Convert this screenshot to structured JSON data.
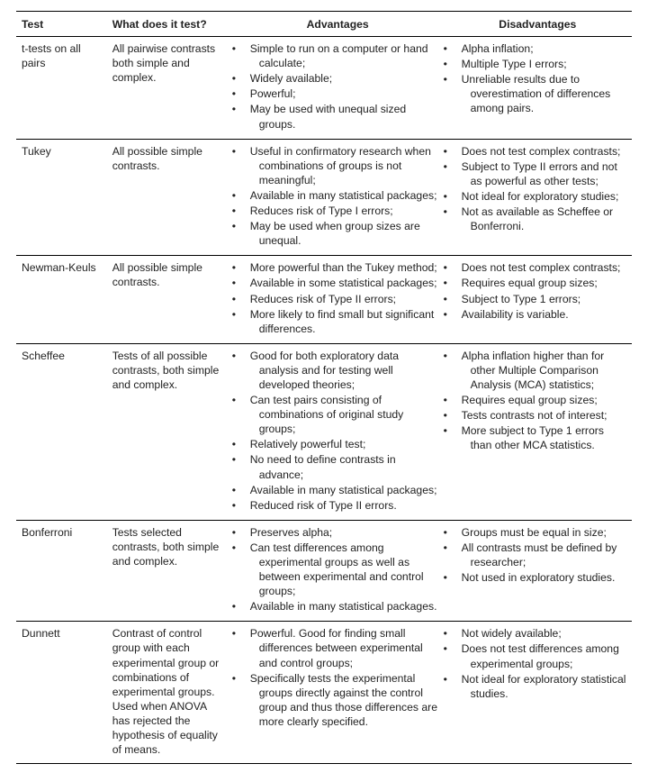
{
  "header": {
    "test": "Test",
    "what": "What does it test?",
    "advantages": "Advantages",
    "disadvantages": "Disadvantages"
  },
  "rows": [
    {
      "test": "t-tests on all pairs",
      "what": "All pairwise contrasts both simple and complex.",
      "adv": [
        "Simple to run on a computer or hand calculate;",
        "Widely available;",
        "Powerful;",
        "May be used with unequal sized groups."
      ],
      "dis": [
        "Alpha inflation;",
        "Multiple Type I errors;",
        "Unreliable results due to overestimation of differences among pairs."
      ]
    },
    {
      "test": "Tukey",
      "what": "All possible simple contrasts.",
      "adv": [
        "Useful in confirmatory research when combinations of groups is not meaningful;",
        "Available in many statistical packages;",
        "Reduces risk of Type I errors;",
        "May be used when group sizes are unequal."
      ],
      "dis": [
        "Does not test complex contrasts;",
        "Subject to Type II errors and not as powerful as other tests;",
        "Not ideal for exploratory studies;",
        "Not as available as Scheffee or Bonferroni."
      ]
    },
    {
      "test": "Newman-Keuls",
      "what": "All possible simple contrasts.",
      "adv": [
        "More powerful than the Tukey method;",
        "Available in some statistical packages;",
        "Reduces risk of Type II errors;",
        "More likely to find small but significant differences."
      ],
      "dis": [
        "Does not test complex contrasts;",
        "Requires equal group sizes;",
        "Subject to Type 1 errors;",
        "Availability is variable."
      ]
    },
    {
      "test": "Scheffee",
      "what": "Tests of all possible contrasts, both simple and complex.",
      "adv": [
        "Good for both exploratory data analysis and for testing well developed theories;",
        "Can test pairs consisting of combinations of original study groups;",
        "Relatively powerful test;",
        "No need to define contrasts in advance;",
        "Available in many statistical packages;",
        "Reduced risk of Type II errors."
      ],
      "dis": [
        "Alpha inflation higher than for other Multiple Comparison Analysis (MCA) statistics;",
        "Requires equal group sizes;",
        "Tests contrasts not of interest;",
        "More subject to Type 1 errors than other MCA statistics."
      ]
    },
    {
      "test": "Bonferroni",
      "what": "Tests selected contrasts, both simple and complex.",
      "adv": [
        "Preserves alpha;",
        "Can test differences among experimental groups as well as between experimental and control groups;",
        "Available in many statistical packages."
      ],
      "dis": [
        "Groups must be equal in size;",
        "All contrasts must be defined by researcher;",
        "Not used in exploratory studies."
      ]
    },
    {
      "test": "Dunnett",
      "what": "Contrast of control group with each experimental group or combinations of experimental groups. Used when ANOVA has rejected the hypothesis of equality of means.",
      "adv": [
        "Powerful. Good for finding small differences between experimental and control groups;",
        "Specifically tests the experimental groups directly against the control group and thus those differences are more clearly specified."
      ],
      "dis": [
        "Not widely available;",
        "Does not test differences among experimental groups;",
        "Not ideal for exploratory statistical studies."
      ]
    }
  ]
}
